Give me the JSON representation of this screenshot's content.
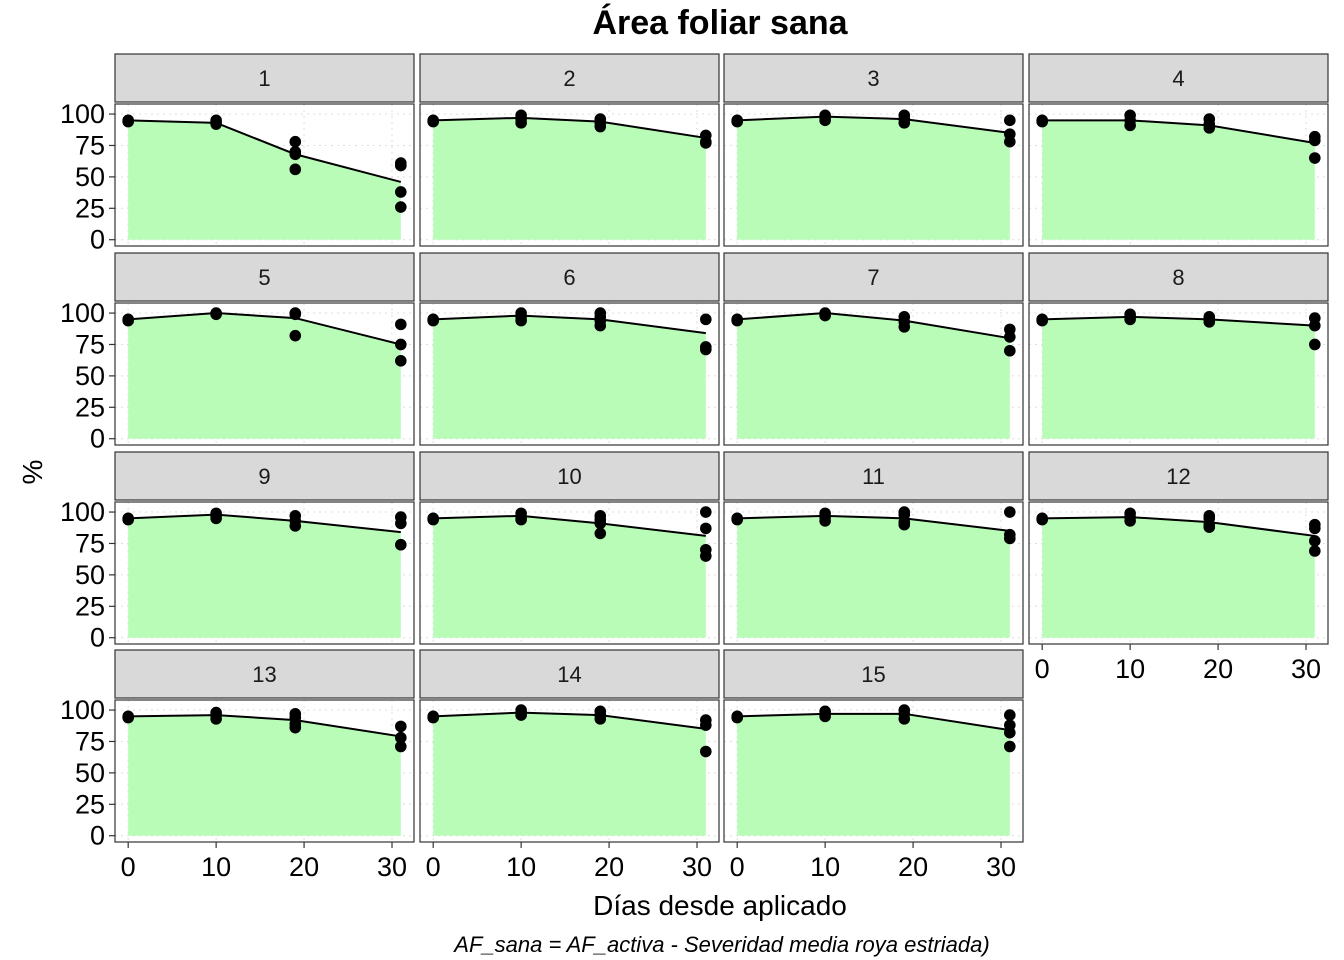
{
  "chart_data": {
    "type": "area",
    "title": "Área foliar sana",
    "xlabel": "Días desde aplicado",
    "ylabel": "%",
    "caption": "AF_sana = AF_activa - Severidad media roya estriada)",
    "xlim": [
      -1.5,
      32.5
    ],
    "ylim": [
      -5,
      108
    ],
    "x_ticks": [
      0,
      10,
      20,
      30
    ],
    "y_ticks": [
      0,
      25,
      50,
      75,
      100
    ],
    "grid": true,
    "colors": {
      "fill": "#b4fcb4",
      "line": "#000000",
      "point": "#000000",
      "strip_bg": "#d9d9d9",
      "panel_border": "#333333"
    },
    "x": [
      0,
      10,
      19,
      31
    ],
    "facets": [
      {
        "label": "1",
        "mean": [
          95,
          93,
          68,
          46
        ],
        "points": [
          [
            0,
            95
          ],
          [
            0,
            94
          ],
          [
            10,
            95
          ],
          [
            10,
            93
          ],
          [
            10,
            92
          ],
          [
            19,
            78
          ],
          [
            19,
            70
          ],
          [
            19,
            68
          ],
          [
            19,
            56
          ],
          [
            31,
            61
          ],
          [
            31,
            59
          ],
          [
            31,
            38
          ],
          [
            31,
            26
          ]
        ]
      },
      {
        "label": "2",
        "mean": [
          95,
          97,
          94,
          81
        ],
        "points": [
          [
            0,
            95
          ],
          [
            0,
            94
          ],
          [
            10,
            99
          ],
          [
            10,
            96
          ],
          [
            10,
            93
          ],
          [
            19,
            96
          ],
          [
            19,
            93
          ],
          [
            19,
            90
          ],
          [
            31,
            83
          ],
          [
            31,
            78
          ],
          [
            31,
            77
          ]
        ]
      },
      {
        "label": "3",
        "mean": [
          95,
          98,
          96,
          85
        ],
        "points": [
          [
            0,
            95
          ],
          [
            0,
            94
          ],
          [
            10,
            99
          ],
          [
            10,
            97
          ],
          [
            10,
            95
          ],
          [
            19,
            99
          ],
          [
            19,
            96
          ],
          [
            19,
            93
          ],
          [
            31,
            95
          ],
          [
            31,
            84
          ],
          [
            31,
            78
          ]
        ]
      },
      {
        "label": "4",
        "mean": [
          95,
          95,
          91,
          77
        ],
        "points": [
          [
            0,
            95
          ],
          [
            0,
            94
          ],
          [
            10,
            99
          ],
          [
            10,
            95
          ],
          [
            10,
            91
          ],
          [
            19,
            96
          ],
          [
            19,
            92
          ],
          [
            19,
            89
          ],
          [
            31,
            82
          ],
          [
            31,
            79
          ],
          [
            31,
            65
          ]
        ]
      },
      {
        "label": "5",
        "mean": [
          95,
          100,
          96,
          75
        ],
        "points": [
          [
            0,
            95
          ],
          [
            0,
            94
          ],
          [
            10,
            100
          ],
          [
            10,
            99
          ],
          [
            19,
            100
          ],
          [
            19,
            99
          ],
          [
            19,
            82
          ],
          [
            31,
            91
          ],
          [
            31,
            75
          ],
          [
            31,
            62
          ]
        ]
      },
      {
        "label": "6",
        "mean": [
          95,
          98,
          95,
          84
        ],
        "points": [
          [
            0,
            95
          ],
          [
            0,
            94
          ],
          [
            10,
            100
          ],
          [
            10,
            97
          ],
          [
            10,
            94
          ],
          [
            19,
            100
          ],
          [
            19,
            97
          ],
          [
            19,
            94
          ],
          [
            19,
            90
          ],
          [
            31,
            95
          ],
          [
            31,
            73
          ],
          [
            31,
            71
          ]
        ]
      },
      {
        "label": "7",
        "mean": [
          95,
          100,
          94,
          80
        ],
        "points": [
          [
            0,
            95
          ],
          [
            0,
            94
          ],
          [
            10,
            100
          ],
          [
            10,
            98
          ],
          [
            19,
            97
          ],
          [
            19,
            93
          ],
          [
            19,
            89
          ],
          [
            31,
            87
          ],
          [
            31,
            81
          ],
          [
            31,
            70
          ]
        ]
      },
      {
        "label": "8",
        "mean": [
          95,
          97,
          95,
          90
        ],
        "points": [
          [
            0,
            95
          ],
          [
            0,
            94
          ],
          [
            10,
            99
          ],
          [
            10,
            97
          ],
          [
            10,
            95
          ],
          [
            19,
            97
          ],
          [
            19,
            95
          ],
          [
            19,
            93
          ],
          [
            31,
            96
          ],
          [
            31,
            90
          ],
          [
            31,
            75
          ]
        ]
      },
      {
        "label": "9",
        "mean": [
          95,
          98,
          93,
          84
        ],
        "points": [
          [
            0,
            95
          ],
          [
            0,
            94
          ],
          [
            10,
            99
          ],
          [
            10,
            97
          ],
          [
            10,
            95
          ],
          [
            19,
            97
          ],
          [
            19,
            93
          ],
          [
            19,
            89
          ],
          [
            31,
            96
          ],
          [
            31,
            91
          ],
          [
            31,
            74
          ]
        ]
      },
      {
        "label": "10",
        "mean": [
          95,
          97,
          91,
          81
        ],
        "points": [
          [
            0,
            95
          ],
          [
            0,
            94
          ],
          [
            10,
            99
          ],
          [
            10,
            96
          ],
          [
            10,
            94
          ],
          [
            19,
            97
          ],
          [
            19,
            94
          ],
          [
            19,
            91
          ],
          [
            19,
            83
          ],
          [
            31,
            100
          ],
          [
            31,
            87
          ],
          [
            31,
            70
          ],
          [
            31,
            65
          ]
        ]
      },
      {
        "label": "11",
        "mean": [
          95,
          97,
          95,
          85
        ],
        "points": [
          [
            0,
            95
          ],
          [
            0,
            94
          ],
          [
            10,
            99
          ],
          [
            10,
            96
          ],
          [
            10,
            93
          ],
          [
            19,
            100
          ],
          [
            19,
            98
          ],
          [
            19,
            92
          ],
          [
            19,
            90
          ],
          [
            31,
            100
          ],
          [
            31,
            82
          ],
          [
            31,
            79
          ]
        ]
      },
      {
        "label": "12",
        "mean": [
          95,
          96,
          92,
          81
        ],
        "points": [
          [
            0,
            95
          ],
          [
            0,
            94
          ],
          [
            10,
            99
          ],
          [
            10,
            96
          ],
          [
            10,
            93
          ],
          [
            19,
            97
          ],
          [
            19,
            95
          ],
          [
            19,
            90
          ],
          [
            19,
            88
          ],
          [
            31,
            90
          ],
          [
            31,
            87
          ],
          [
            31,
            77
          ],
          [
            31,
            69
          ]
        ]
      },
      {
        "label": "13",
        "mean": [
          95,
          96,
          92,
          79
        ],
        "points": [
          [
            0,
            95
          ],
          [
            0,
            94
          ],
          [
            10,
            98
          ],
          [
            10,
            96
          ],
          [
            10,
            93
          ],
          [
            19,
            97
          ],
          [
            19,
            94
          ],
          [
            19,
            89
          ],
          [
            19,
            86
          ],
          [
            31,
            87
          ],
          [
            31,
            78
          ],
          [
            31,
            71
          ]
        ]
      },
      {
        "label": "14",
        "mean": [
          95,
          98,
          96,
          85
        ],
        "points": [
          [
            0,
            95
          ],
          [
            0,
            94
          ],
          [
            10,
            100
          ],
          [
            10,
            98
          ],
          [
            10,
            96
          ],
          [
            19,
            99
          ],
          [
            19,
            96
          ],
          [
            19,
            93
          ],
          [
            31,
            92
          ],
          [
            31,
            88
          ],
          [
            31,
            67
          ]
        ]
      },
      {
        "label": "15",
        "mean": [
          95,
          97,
          97,
          84
        ],
        "points": [
          [
            0,
            95
          ],
          [
            0,
            94
          ],
          [
            10,
            99
          ],
          [
            10,
            97
          ],
          [
            10,
            95
          ],
          [
            19,
            100
          ],
          [
            19,
            97
          ],
          [
            19,
            93
          ],
          [
            31,
            96
          ],
          [
            31,
            88
          ],
          [
            31,
            82
          ],
          [
            31,
            71
          ]
        ]
      }
    ]
  }
}
